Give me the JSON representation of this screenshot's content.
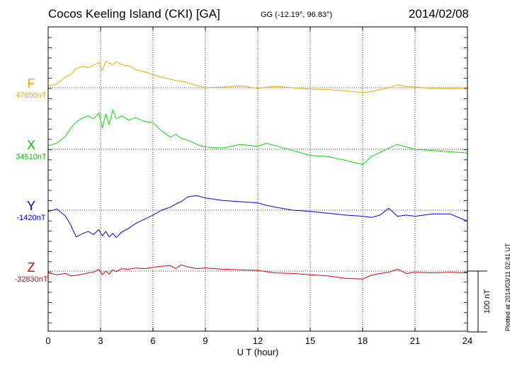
{
  "header": {
    "title": "Cocos Keeling Island (CKI)  [GA]",
    "coords": "GG (-12.19°,  96.83°)",
    "date": "2014/02/08"
  },
  "footer": {
    "plotted": "Plotted at 2014/03/11 02:41 UT"
  },
  "scale_bar": {
    "label": "100 nT",
    "nT": 100
  },
  "chart_data": {
    "type": "line",
    "title": "Cocos Keeling Island (CKI)  [GA]",
    "xlabel": "U T (hour)",
    "ylabel": "",
    "xlim": [
      0,
      24
    ],
    "xticks": [
      0,
      3,
      6,
      9,
      12,
      15,
      18,
      21,
      24
    ],
    "grid": true,
    "nT_per_band": 100,
    "series": [
      {
        "name": "F",
        "baseline": "47650nT",
        "color": "#f0a800",
        "x": [
          0,
          0.5,
          1,
          1.3,
          1.6,
          2,
          2.3,
          2.6,
          2.9,
          3.1,
          3.3,
          3.5,
          3.7,
          3.9,
          4.2,
          4.6,
          5,
          5.5,
          6,
          6.5,
          7,
          7.3,
          7.6,
          8,
          8.5,
          9,
          10,
          11,
          12,
          12.5,
          13,
          14,
          15,
          16,
          17,
          18,
          18.5,
          19,
          19.5,
          20,
          20.5,
          21,
          22,
          23,
          24
        ],
        "values": [
          3,
          6,
          18,
          22,
          32,
          35,
          33,
          37,
          42,
          28,
          44,
          40,
          38,
          43,
          38,
          36,
          30,
          26,
          22,
          17,
          14,
          12,
          11,
          8,
          4,
          0,
          1,
          3,
          -1,
          1,
          2,
          0,
          -2,
          -3,
          -5,
          -8,
          -6,
          -3,
          0,
          5,
          2,
          1,
          -1,
          -1,
          0
        ]
      },
      {
        "name": "X",
        "baseline": "34510nT",
        "color": "#00e000",
        "x": [
          0,
          0.5,
          1,
          1.3,
          1.6,
          2,
          2.3,
          2.6,
          2.9,
          3.1,
          3.3,
          3.5,
          3.7,
          3.9,
          4.2,
          4.6,
          5,
          5.5,
          6,
          6.5,
          7,
          7.3,
          7.6,
          8,
          8.5,
          9,
          10,
          11,
          12,
          12.5,
          13,
          14,
          15,
          16,
          17,
          18,
          18.5,
          19,
          19.5,
          20,
          20.5,
          21,
          22,
          23,
          24
        ],
        "values": [
          6,
          10,
          22,
          35,
          45,
          52,
          55,
          50,
          60,
          35,
          58,
          40,
          65,
          50,
          55,
          48,
          52,
          46,
          44,
          30,
          20,
          25,
          18,
          15,
          8,
          4,
          2,
          8,
          5,
          10,
          6,
          -2,
          -10,
          -12,
          -18,
          -25,
          -12,
          -5,
          2,
          8,
          4,
          0,
          -2,
          -4,
          -6
        ]
      },
      {
        "name": "Y",
        "baseline": "-1420nT",
        "color": "#0000e0",
        "x": [
          0,
          0.5,
          1,
          1.3,
          1.6,
          2,
          2.3,
          2.6,
          2.9,
          3.1,
          3.3,
          3.5,
          3.7,
          3.9,
          4.2,
          4.6,
          5,
          5.5,
          6,
          6.5,
          7,
          7.3,
          7.6,
          8,
          8.5,
          9,
          10,
          11,
          12,
          12.5,
          13,
          14,
          15,
          16,
          17,
          18,
          18.5,
          19,
          19.5,
          20,
          20.5,
          21,
          22,
          23,
          24
        ],
        "values": [
          -2,
          2,
          -10,
          -25,
          -44,
          -38,
          -35,
          -40,
          -32,
          -42,
          -35,
          -44,
          -38,
          -45,
          -36,
          -30,
          -22,
          -15,
          -8,
          0,
          5,
          10,
          14,
          22,
          24,
          20,
          16,
          14,
          12,
          8,
          5,
          0,
          -2,
          -5,
          -8,
          -10,
          -12,
          -8,
          3,
          -10,
          -8,
          -10,
          -6,
          -6,
          -18
        ]
      },
      {
        "name": "Z",
        "baseline": "-32830nT",
        "color": "#e00000",
        "x": [
          0,
          0.5,
          1,
          1.3,
          1.6,
          2,
          2.3,
          2.6,
          2.9,
          3.1,
          3.3,
          3.5,
          3.7,
          3.9,
          4.2,
          4.6,
          5,
          5.5,
          6,
          6.5,
          7,
          7.3,
          7.6,
          8,
          8.5,
          9,
          10,
          11,
          12,
          12.5,
          13,
          14,
          15,
          16,
          17,
          18,
          18.5,
          19,
          19.5,
          20,
          20.5,
          21,
          22,
          23,
          24
        ],
        "values": [
          -3,
          -6,
          -4,
          -8,
          -7,
          -5,
          -3,
          -2,
          3,
          -6,
          0,
          -5,
          2,
          -1,
          4,
          3,
          5,
          4,
          6,
          8,
          9,
          4,
          10,
          7,
          4,
          5,
          3,
          2,
          1,
          -1,
          -3,
          -4,
          -6,
          -8,
          -12,
          -13,
          -7,
          -4,
          -2,
          3,
          -4,
          -2,
          -3,
          -2,
          -3
        ]
      }
    ]
  }
}
